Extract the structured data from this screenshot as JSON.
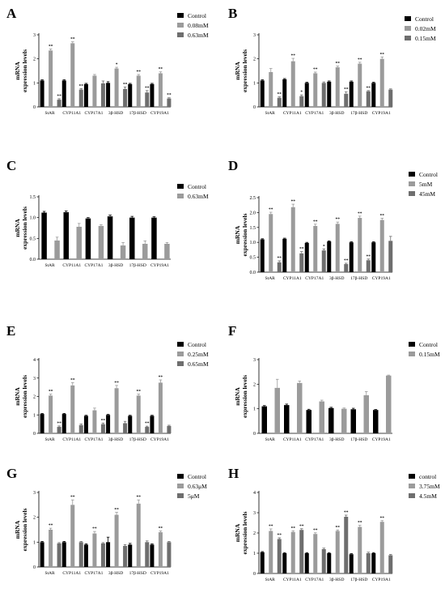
{
  "chart_data": [
    {
      "panel": "A",
      "type": "bar",
      "ylabel": [
        "mRNA",
        "expression levels"
      ],
      "ylim": [
        0,
        3
      ],
      "yticks": [
        0,
        1,
        2,
        3
      ],
      "categories": [
        "StAR",
        "CYP11A1",
        "CYP17A1",
        "3β-HSD",
        "17β-HSD",
        "CYP19A1"
      ],
      "colors": [
        "#000000",
        "#9b9b9b",
        "#6e6e6e"
      ],
      "series": [
        {
          "name": "Control",
          "values": [
            1.1,
            1.1,
            0.95,
            1.0,
            0.95,
            0.95
          ],
          "err": [
            0.03,
            0.03,
            0.03,
            0.05,
            0.03,
            0.03
          ],
          "sig": [
            "",
            "",
            "",
            "",
            "",
            ""
          ]
        },
        {
          "name": "0.08mM",
          "values": [
            2.35,
            2.65,
            1.3,
            1.6,
            1.3,
            1.4
          ],
          "err": [
            0.06,
            0.06,
            0.05,
            0.05,
            0.05,
            0.06
          ],
          "sig": [
            "**",
            "**",
            "",
            "*",
            "**",
            "**"
          ]
        },
        {
          "name": "0.63mM",
          "values": [
            0.3,
            0.72,
            0.98,
            0.75,
            0.6,
            0.35
          ],
          "err": [
            0.04,
            0.04,
            0.1,
            0.08,
            0.08,
            0.03
          ],
          "sig": [
            "**",
            "**",
            "",
            "**",
            "**",
            "**"
          ]
        }
      ]
    },
    {
      "panel": "B",
      "type": "bar",
      "ylabel": [
        "mRNA",
        "expression levels"
      ],
      "ylim": [
        0,
        3
      ],
      "yticks": [
        0,
        1,
        2,
        3
      ],
      "categories": [
        "StAR",
        "CYP11A1",
        "CYP17A1",
        "3β-HSD",
        "17β-HSD",
        "CYP19A1"
      ],
      "colors": [
        "#000000",
        "#9b9b9b",
        "#6e6e6e"
      ],
      "series": [
        {
          "name": "Control",
          "values": [
            1.1,
            1.15,
            1.0,
            1.05,
            1.05,
            1.0
          ],
          "err": [
            0.03,
            0.03,
            0.03,
            0.03,
            0.03,
            0.03
          ],
          "sig": [
            "",
            "",
            "",
            "",
            "",
            ""
          ]
        },
        {
          "name": "0.02mM",
          "values": [
            1.45,
            1.9,
            1.4,
            1.65,
            1.8,
            2.0
          ],
          "err": [
            0.15,
            0.12,
            0.05,
            0.05,
            0.06,
            0.08
          ],
          "sig": [
            "",
            "**",
            "**",
            "**",
            "**",
            "**"
          ]
        },
        {
          "name": "0.15mM",
          "values": [
            0.38,
            0.45,
            1.0,
            0.55,
            0.65,
            0.72
          ],
          "err": [
            0.04,
            0.05,
            0.04,
            0.08,
            0.03,
            0.03
          ],
          "sig": [
            "**",
            "*",
            "",
            "**",
            "**",
            ""
          ]
        }
      ]
    },
    {
      "panel": "C",
      "type": "bar",
      "ylabel": [
        "mRNA",
        "expression levels"
      ],
      "ylim": [
        0,
        1.5
      ],
      "yticks": [
        0,
        0.5,
        1.0,
        1.5
      ],
      "categories": [
        "StAR",
        "CYP11A1",
        "CYP17A1",
        "3β-HSD",
        "17β-HSD",
        "CYP19A1"
      ],
      "colors": [
        "#000000",
        "#9b9b9b"
      ],
      "series": [
        {
          "name": "Control",
          "values": [
            1.12,
            1.13,
            0.98,
            1.03,
            1.0,
            1.0
          ],
          "err": [
            0.03,
            0.03,
            0.02,
            0.03,
            0.03,
            0.02
          ],
          "sig": [
            "",
            "",
            "",
            "",
            "",
            ""
          ]
        },
        {
          "name": "0.63mM",
          "values": [
            0.45,
            0.78,
            0.8,
            0.33,
            0.37,
            0.37
          ],
          "err": [
            0.08,
            0.08,
            0.03,
            0.07,
            0.07,
            0.03
          ],
          "sig": [
            "",
            "",
            "",
            "",
            "",
            ""
          ]
        }
      ]
    },
    {
      "panel": "D",
      "type": "bar",
      "ylabel": [
        "mRNA",
        "expression levels"
      ],
      "ylim": [
        0,
        2.5
      ],
      "yticks": [
        0,
        0.5,
        1.0,
        1.5,
        2.0,
        2.5
      ],
      "categories": [
        "StAR",
        "CYP11A1",
        "CYP17A1",
        "3β-HSD",
        "17β-HSD",
        "CYP19A1"
      ],
      "colors": [
        "#000000",
        "#9b9b9b",
        "#6e6e6e"
      ],
      "series": [
        {
          "name": "Control",
          "values": [
            1.1,
            1.12,
            0.98,
            1.03,
            1.0,
            1.0
          ],
          "err": [
            0.02,
            0.02,
            0.02,
            0.02,
            0.02,
            0.02
          ],
          "sig": [
            "",
            "",
            "",
            "",
            "",
            ""
          ]
        },
        {
          "name": "5mM",
          "values": [
            1.95,
            2.18,
            1.55,
            1.62,
            1.82,
            1.75
          ],
          "err": [
            0.06,
            0.1,
            0.06,
            0.06,
            0.06,
            0.06
          ],
          "sig": [
            "**",
            "**",
            "**",
            "**",
            "**",
            "**"
          ]
        },
        {
          "name": "45mM",
          "values": [
            0.33,
            0.63,
            0.73,
            0.27,
            0.4,
            1.05
          ],
          "err": [
            0.05,
            0.06,
            0.05,
            0.03,
            0.04,
            0.15
          ],
          "sig": [
            "**",
            "**",
            "*",
            "**",
            "**",
            ""
          ]
        }
      ]
    },
    {
      "panel": "E",
      "type": "bar",
      "ylabel": [
        "mRNA",
        "expression levels"
      ],
      "ylim": [
        0,
        4
      ],
      "yticks": [
        0,
        1,
        2,
        3,
        4
      ],
      "categories": [
        "StAR",
        "CYP11A1",
        "CYP17A1",
        "3β-HSD",
        "17β-HSD",
        "CYP19A1"
      ],
      "colors": [
        "#000000",
        "#9b9b9b",
        "#6e6e6e"
      ],
      "series": [
        {
          "name": "Control",
          "values": [
            1.05,
            1.05,
            0.95,
            1.0,
            0.95,
            0.95
          ],
          "err": [
            0.03,
            0.03,
            0.03,
            0.03,
            0.03,
            0.03
          ],
          "sig": [
            "",
            "",
            "",
            "",
            "",
            ""
          ]
        },
        {
          "name": "0.25mM",
          "values": [
            2.05,
            2.6,
            1.25,
            2.45,
            2.05,
            2.75
          ],
          "err": [
            0.08,
            0.15,
            0.12,
            0.15,
            0.08,
            0.15
          ],
          "sig": [
            "**",
            "**",
            "",
            "**",
            "**",
            "**"
          ]
        },
        {
          "name": "0.65mM",
          "values": [
            0.35,
            0.45,
            0.5,
            0.55,
            0.35,
            0.4
          ],
          "err": [
            0.05,
            0.06,
            0.06,
            0.1,
            0.04,
            0.04
          ],
          "sig": [
            "**",
            "",
            "**",
            "",
            "**",
            ""
          ]
        }
      ]
    },
    {
      "panel": "F",
      "type": "bar",
      "ylabel": [
        "mRNA",
        "expression levels"
      ],
      "ylim": [
        0,
        3
      ],
      "yticks": [
        0,
        1,
        2,
        3
      ],
      "categories": [
        "StAR",
        "CYP11A1",
        "CYP17A1",
        "3β-HSD",
        "17β-HSD",
        "CYP19A1"
      ],
      "colors": [
        "#000000",
        "#9b9b9b"
      ],
      "series": [
        {
          "name": "Control",
          "values": [
            1.1,
            1.15,
            0.95,
            1.03,
            0.98,
            0.95
          ],
          "err": [
            0.03,
            0.04,
            0.03,
            0.03,
            0.04,
            0.02
          ],
          "sig": [
            "",
            "",
            "",
            "",
            "",
            ""
          ]
        },
        {
          "name": "0.15mM",
          "values": [
            1.85,
            2.05,
            1.3,
            1.0,
            1.55,
            2.35
          ],
          "err": [
            0.35,
            0.08,
            0.05,
            0.03,
            0.15,
            0.02
          ],
          "sig": [
            "",
            "",
            "",
            "",
            "",
            ""
          ]
        }
      ]
    },
    {
      "panel": "G",
      "type": "bar",
      "ylabel": [
        "mRNA",
        "expression levels"
      ],
      "ylim": [
        0,
        3
      ],
      "yticks": [
        0,
        1,
        2,
        3
      ],
      "categories": [
        "StAR",
        "CYP11A1",
        "CYP17A1",
        "3β-HSD",
        "17β-HSD",
        "CYP19A1"
      ],
      "colors": [
        "#000000",
        "#9b9b9b",
        "#6e6e6e"
      ],
      "series": [
        {
          "name": "Control",
          "values": [
            1.0,
            1.0,
            0.9,
            1.0,
            0.9,
            0.9
          ],
          "err": [
            0.03,
            0.03,
            0.03,
            0.2,
            0.05,
            0.03
          ],
          "sig": [
            "",
            "",
            "",
            "",
            "",
            ""
          ]
        },
        {
          "name": "0.63μM",
          "values": [
            1.5,
            2.5,
            1.35,
            2.1,
            2.55,
            1.4
          ],
          "err": [
            0.06,
            0.2,
            0.08,
            0.1,
            0.15,
            0.05
          ],
          "sig": [
            "**",
            "**",
            "**",
            "**",
            "**",
            "**"
          ]
        },
        {
          "name": "5μM",
          "values": [
            0.95,
            1.0,
            0.95,
            0.85,
            1.0,
            1.0
          ],
          "err": [
            0.03,
            0.03,
            0.03,
            0.05,
            0.05,
            0.03
          ],
          "sig": [
            "",
            "",
            "",
            "",
            "",
            ""
          ]
        }
      ]
    },
    {
      "panel": "H",
      "type": "bar",
      "ylabel": [
        "mRNA",
        "expression levels"
      ],
      "ylim": [
        0,
        4
      ],
      "yticks": [
        0,
        1,
        2,
        3,
        4
      ],
      "categories": [
        "StAR",
        "CYP11A1",
        "CYP17A1",
        "3β-HSD",
        "17β-HSD",
        "CYP19A1"
      ],
      "colors": [
        "#000000",
        "#9b9b9b",
        "#6e6e6e"
      ],
      "series": [
        {
          "name": "control",
          "values": [
            1.05,
            1.0,
            1.0,
            1.0,
            0.95,
            1.0
          ],
          "err": [
            0.03,
            0.03,
            0.03,
            0.03,
            0.03,
            0.03
          ],
          "sig": [
            "",
            "",
            "",
            "",
            "",
            ""
          ]
        },
        {
          "name": "3.75mM",
          "values": [
            2.1,
            2.05,
            1.95,
            2.1,
            2.3,
            2.55
          ],
          "err": [
            0.1,
            0.06,
            0.06,
            0.05,
            0.08,
            0.06
          ],
          "sig": [
            "**",
            "**",
            "**",
            "**",
            "**",
            "**"
          ]
        },
        {
          "name": "4.5mM",
          "values": [
            1.7,
            2.15,
            1.2,
            2.8,
            1.0,
            0.9
          ],
          "err": [
            0.06,
            0.06,
            0.05,
            0.08,
            0.05,
            0.04
          ],
          "sig": [
            "**",
            "**",
            "",
            "**",
            "",
            ""
          ]
        }
      ]
    }
  ]
}
